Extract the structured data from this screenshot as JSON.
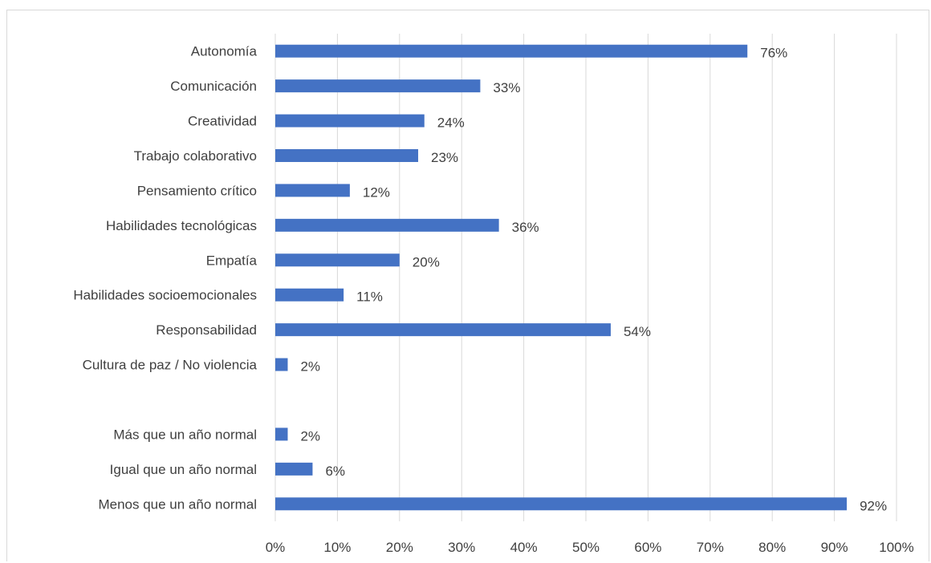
{
  "chart_data": {
    "type": "bar",
    "orientation": "horizontal",
    "categories": [
      "Autonomía",
      "Comunicación",
      "Creatividad",
      "Trabajo colaborativo",
      "Pensamiento crítico",
      "Habilidades tecnológicas",
      "Empatía",
      "Habilidades socioemocionales",
      "Responsabilidad",
      "Cultura de paz / No violencia",
      "",
      "Más que un año normal",
      "Igual que un año normal",
      "Menos que un año normal"
    ],
    "values": [
      76,
      33,
      24,
      23,
      12,
      36,
      20,
      11,
      54,
      2,
      null,
      2,
      6,
      92
    ],
    "value_labels": [
      "76%",
      "33%",
      "24%",
      "23%",
      "12%",
      "36%",
      "20%",
      "11%",
      "54%",
      "2%",
      "",
      "2%",
      "6%",
      "92%"
    ],
    "x_ticks": [
      "0%",
      "10%",
      "20%",
      "30%",
      "40%",
      "50%",
      "60%",
      "70%",
      "80%",
      "90%",
      "100%"
    ],
    "xlim": [
      0,
      100
    ],
    "grid": "vertical",
    "title": "",
    "xlabel": "",
    "ylabel": "",
    "bar_color": "#4472c4",
    "grid_color": "#d9d9d9",
    "text_color": "#404040"
  }
}
